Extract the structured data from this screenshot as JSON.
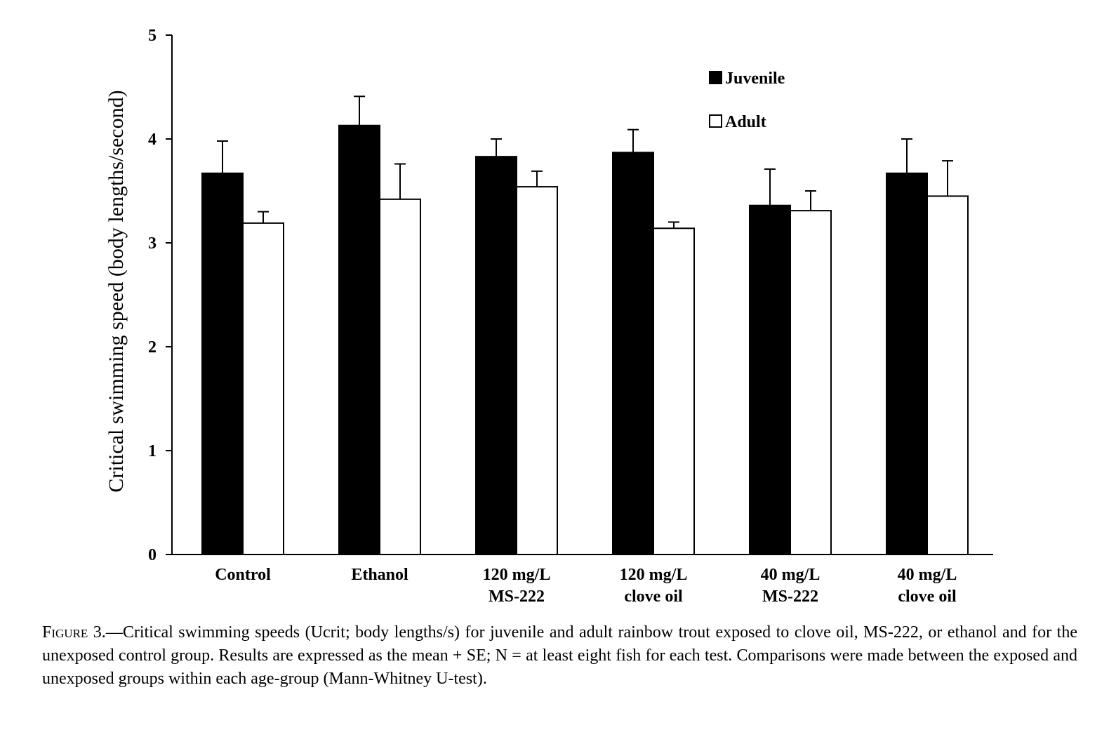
{
  "chart_data": {
    "type": "bar",
    "title": "",
    "xlabel": "",
    "ylabel": "Critical swimming speed (body lengths/second)",
    "ylim": [
      0,
      5
    ],
    "yticks": [
      "0",
      "1",
      "2",
      "3",
      "4",
      "5"
    ],
    "categories": [
      [
        "Control"
      ],
      [
        "Ethanol"
      ],
      [
        "120 mg/L",
        "MS-222"
      ],
      [
        "120 mg/L",
        "clove oil"
      ],
      [
        "40 mg/L",
        "MS-222"
      ],
      [
        "40 mg/L",
        "clove oil"
      ]
    ],
    "series": [
      {
        "name": "Juvenile",
        "color": "#000000",
        "values": [
          3.67,
          4.13,
          3.83,
          3.87,
          3.36,
          3.67
        ],
        "errors": [
          0.31,
          0.28,
          0.17,
          0.22,
          0.35,
          0.33
        ]
      },
      {
        "name": "Adult",
        "color": "#ffffff",
        "values": [
          3.19,
          3.42,
          3.54,
          3.14,
          3.31,
          3.45
        ],
        "errors": [
          0.11,
          0.34,
          0.15,
          0.06,
          0.19,
          0.34
        ]
      }
    ],
    "error_bars": "mean + SE",
    "grid": false,
    "legend_position": "top-right"
  },
  "caption": {
    "label": "Figure 3.",
    "text": "—Critical swimming speeds (Ucrit; body lengths/s) for juvenile and adult rainbow trout exposed to clove oil, MS-222, or ethanol and for the unexposed control group. Results are expressed as the mean + SE; N = at least eight fish for each test. Comparisons were made between the exposed and unexposed groups within each age-group (Mann-Whitney U-test)."
  }
}
